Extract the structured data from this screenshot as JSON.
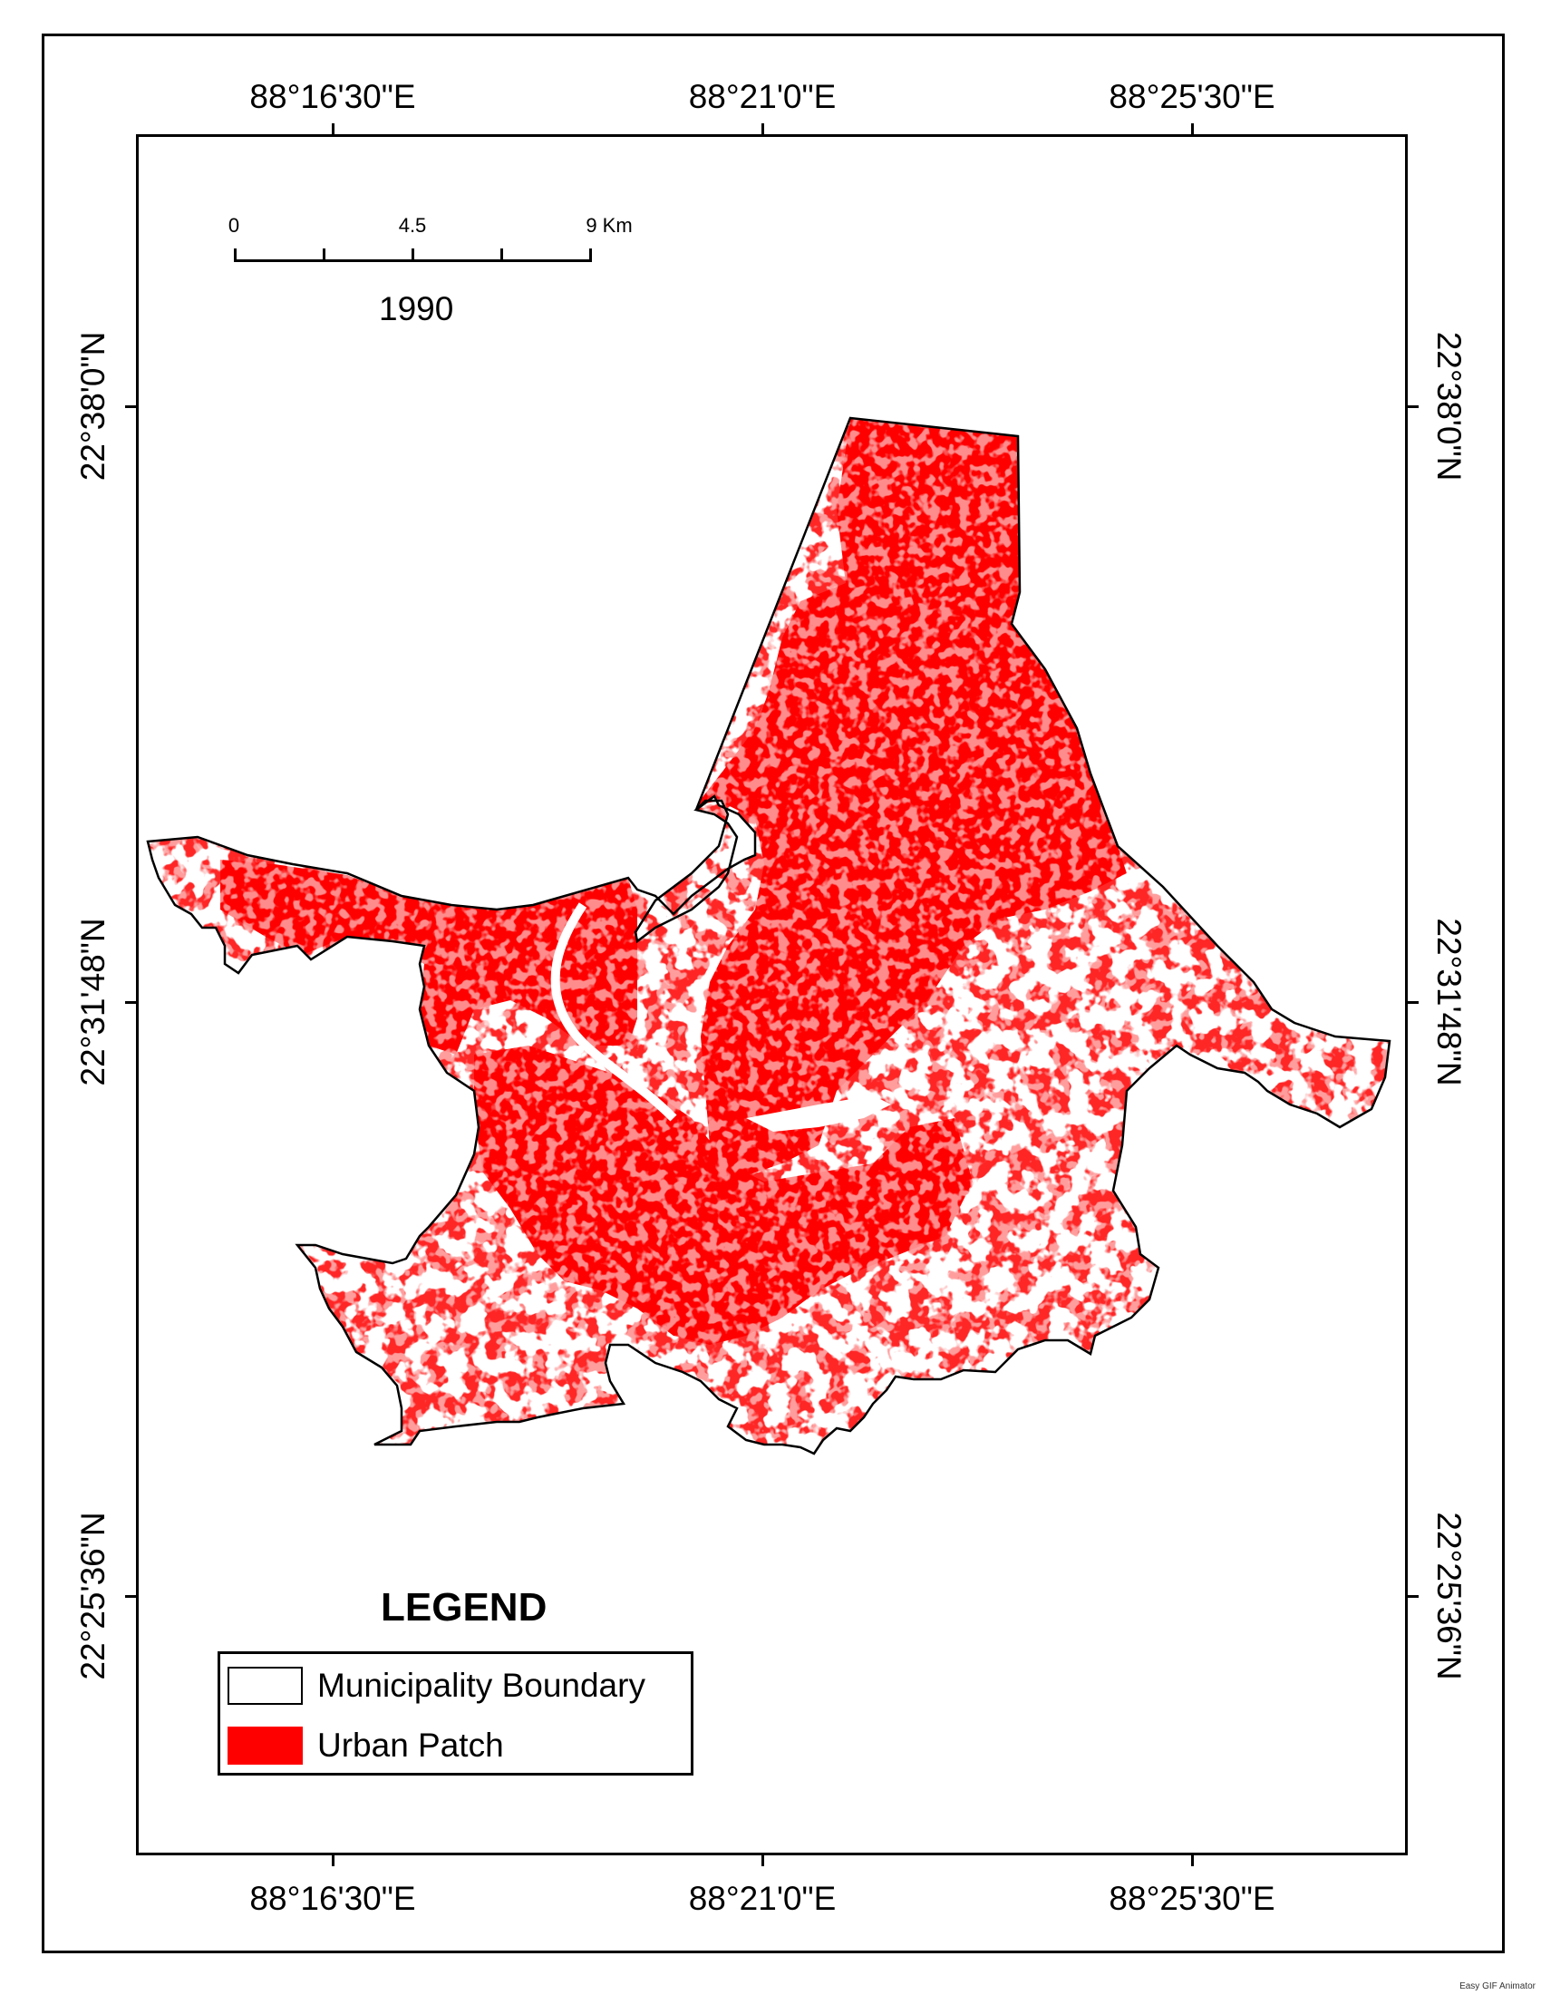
{
  "map": {
    "year": "1990",
    "lon_labels": [
      "88°16'30\"E",
      "88°21'0\"E",
      "88°25'30\"E"
    ],
    "lat_labels": [
      "22°38'0\"N",
      "22°31'48\"N",
      "22°25'36\"N"
    ],
    "scale_bar": {
      "labels": [
        "0",
        "4.5",
        "9 Km"
      ]
    },
    "legend": {
      "title": "LEGEND",
      "items": [
        {
          "label": "Municipality Boundary",
          "icon": "boundary-outline-swatch"
        },
        {
          "label": "Urban Patch",
          "icon": "urban-patch-swatch",
          "color": "#ff0000"
        }
      ]
    },
    "colors": {
      "urban": "#ff0000",
      "boundary": "#000000",
      "background": "#ffffff"
    }
  },
  "credit": "Easy GIF Animator"
}
